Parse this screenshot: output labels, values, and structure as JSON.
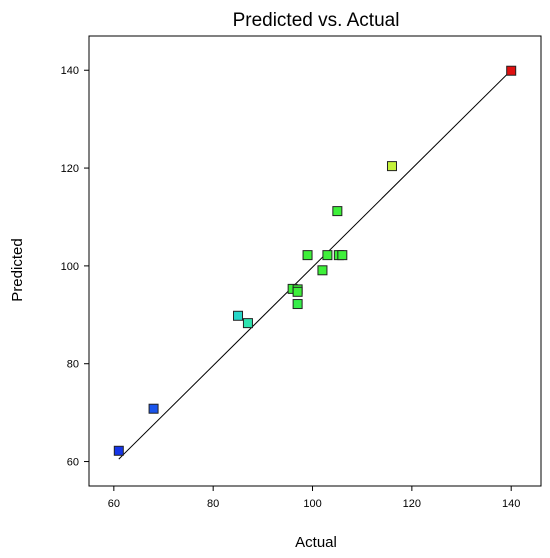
{
  "chart_data": {
    "type": "scatter",
    "title": "Predicted vs. Actual",
    "xlabel": "Actual",
    "ylabel": "Predicted",
    "xlim": [
      55,
      146
    ],
    "ylim": [
      55,
      147
    ],
    "xticks": [
      60,
      80,
      100,
      120,
      140
    ],
    "yticks": [
      60,
      80,
      100,
      120,
      140
    ],
    "grid": false,
    "reference_line": {
      "x": [
        61,
        140
      ],
      "y": [
        60.5,
        140
      ]
    },
    "points": [
      {
        "x": 61,
        "y": 62.2,
        "color": "#1535e8"
      },
      {
        "x": 68,
        "y": 70.8,
        "color": "#1a55ec"
      },
      {
        "x": 85,
        "y": 89.8,
        "color": "#26d6c8"
      },
      {
        "x": 87,
        "y": 88.3,
        "color": "#2ee4b0"
      },
      {
        "x": 96,
        "y": 95.3,
        "color": "#3ef03a"
      },
      {
        "x": 97,
        "y": 95.2,
        "color": "#3ef03a"
      },
      {
        "x": 97,
        "y": 94.7,
        "color": "#3ef03a"
      },
      {
        "x": 97,
        "y": 92.2,
        "color": "#36ee4a"
      },
      {
        "x": 99,
        "y": 102.2,
        "color": "#3ef03a"
      },
      {
        "x": 102,
        "y": 99.1,
        "color": "#3ef03a"
      },
      {
        "x": 103,
        "y": 102.2,
        "color": "#3ef03a"
      },
      {
        "x": 105,
        "y": 111.2,
        "color": "#3ef03a"
      },
      {
        "x": 105.3,
        "y": 102.2,
        "color": "#3ef03a"
      },
      {
        "x": 106,
        "y": 102.2,
        "color": "#3ef03a"
      },
      {
        "x": 116,
        "y": 120.4,
        "color": "#c4f23a"
      },
      {
        "x": 140,
        "y": 139.9,
        "color": "#e01010"
      }
    ]
  }
}
